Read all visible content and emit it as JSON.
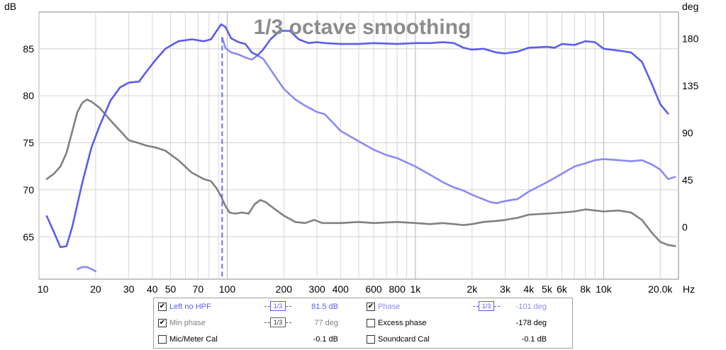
{
  "chart_data": {
    "type": "line",
    "title": "1/3 octave smoothing",
    "y_left_unit": "dB",
    "y_right_unit": "deg",
    "x_unit": "Hz",
    "x_scale": "log",
    "xlim": [
      10,
      25000
    ],
    "ylim_left": [
      60.5,
      88.9
    ],
    "ylim_right": [
      -49.6,
      205.5
    ],
    "x_tick_labels": [
      "10",
      "20",
      "30",
      "40",
      "50",
      "70",
      "100",
      "200",
      "300",
      "400",
      "600",
      "800",
      "1k",
      "2k",
      "3k",
      "4k",
      "5k",
      "6k",
      "8k",
      "10k",
      "20.0k"
    ],
    "x_tick_values": [
      10.5,
      20,
      30,
      40,
      50,
      70,
      100,
      200,
      300,
      400,
      600,
      800,
      1000,
      2000,
      3000,
      4000,
      5000,
      6000,
      8000,
      10000,
      20000
    ],
    "y_left_ticks": [
      65,
      70,
      75,
      80,
      85
    ],
    "y_right_ticks": [
      0,
      45,
      90,
      135,
      180
    ],
    "grid": true,
    "marker_frequency": 94,
    "series": [
      {
        "name": "Left no HPF",
        "axis": "left",
        "color": "#5b5bf0",
        "points": [
          [
            11,
            67.2
          ],
          [
            12,
            65.5
          ],
          [
            13,
            63.9
          ],
          [
            14,
            64.0
          ],
          [
            15,
            66.0
          ],
          [
            17,
            70.8
          ],
          [
            19,
            74.5
          ],
          [
            21,
            76.8
          ],
          [
            24,
            79.5
          ],
          [
            27,
            80.9
          ],
          [
            30,
            81.4
          ],
          [
            34,
            81.5
          ],
          [
            37,
            82.5
          ],
          [
            42,
            83.9
          ],
          [
            47,
            85.0
          ],
          [
            55,
            85.8
          ],
          [
            65,
            86.0
          ],
          [
            75,
            85.8
          ],
          [
            82,
            86.0
          ],
          [
            88,
            86.9
          ],
          [
            93,
            87.6
          ],
          [
            98,
            87.3
          ],
          [
            105,
            86.1
          ],
          [
            115,
            85.7
          ],
          [
            125,
            85.5
          ],
          [
            135,
            84.6
          ],
          [
            145,
            84.3
          ],
          [
            155,
            84.9
          ],
          [
            170,
            86.0
          ],
          [
            190,
            86.9
          ],
          [
            215,
            86.9
          ],
          [
            240,
            86.0
          ],
          [
            270,
            85.6
          ],
          [
            300,
            85.7
          ],
          [
            330,
            85.6
          ],
          [
            400,
            85.5
          ],
          [
            500,
            85.5
          ],
          [
            600,
            85.6
          ],
          [
            800,
            85.5
          ],
          [
            1000,
            85.6
          ],
          [
            1200,
            85.6
          ],
          [
            1400,
            85.7
          ],
          [
            1600,
            85.6
          ],
          [
            1800,
            85.1
          ],
          [
            2000,
            84.9
          ],
          [
            2300,
            85.0
          ],
          [
            2700,
            84.6
          ],
          [
            3000,
            84.5
          ],
          [
            3500,
            84.7
          ],
          [
            4000,
            85.1
          ],
          [
            5000,
            85.2
          ],
          [
            5500,
            85.1
          ],
          [
            6000,
            85.5
          ],
          [
            7000,
            85.4
          ],
          [
            8000,
            85.8
          ],
          [
            9000,
            85.7
          ],
          [
            10000,
            85.0
          ],
          [
            12000,
            84.8
          ],
          [
            14000,
            84.6
          ],
          [
            16000,
            83.6
          ],
          [
            18000,
            81.3
          ],
          [
            20000,
            79.1
          ],
          [
            22000,
            78.1
          ]
        ]
      },
      {
        "name": "Phase",
        "axis": "right",
        "color": "#8a8af5",
        "points": [
          [
            16,
            -40
          ],
          [
            17,
            -38
          ],
          [
            18,
            -38
          ],
          [
            19,
            -40
          ],
          [
            20,
            -42
          ]
        ]
      },
      {
        "name": "Phase",
        "axis": "right",
        "color": "#8a8af5",
        "points": [
          [
            94,
            181
          ],
          [
            98,
            171
          ],
          [
            105,
            167
          ],
          [
            115,
            165
          ],
          [
            125,
            162
          ],
          [
            135,
            160
          ],
          [
            145,
            164
          ],
          [
            155,
            161
          ],
          [
            165,
            154
          ],
          [
            180,
            144
          ],
          [
            200,
            132
          ],
          [
            230,
            122
          ],
          [
            260,
            116
          ],
          [
            300,
            110
          ],
          [
            330,
            108
          ],
          [
            400,
            92
          ],
          [
            500,
            82
          ],
          [
            600,
            74
          ],
          [
            700,
            69
          ],
          [
            800,
            66
          ],
          [
            1000,
            58
          ],
          [
            1200,
            50
          ],
          [
            1400,
            43
          ],
          [
            1600,
            38
          ],
          [
            1800,
            35
          ],
          [
            2000,
            31
          ],
          [
            2200,
            28
          ],
          [
            2500,
            24
          ],
          [
            2700,
            23
          ],
          [
            3000,
            25
          ],
          [
            3500,
            27
          ],
          [
            4000,
            34
          ],
          [
            5000,
            43
          ],
          [
            6000,
            51
          ],
          [
            7000,
            58
          ],
          [
            8000,
            61
          ],
          [
            9000,
            64
          ],
          [
            10000,
            65
          ],
          [
            12000,
            64
          ],
          [
            14000,
            63
          ],
          [
            16000,
            64
          ],
          [
            18000,
            60
          ],
          [
            20000,
            55
          ],
          [
            22000,
            46
          ],
          [
            24000,
            48
          ]
        ]
      },
      {
        "name": "Min phase",
        "axis": "right",
        "color": "#808080",
        "points": [
          [
            11,
            46
          ],
          [
            12,
            51
          ],
          [
            13,
            58
          ],
          [
            14,
            71
          ],
          [
            15,
            91
          ],
          [
            16,
            110
          ],
          [
            17,
            119
          ],
          [
            18,
            122
          ],
          [
            19,
            120
          ],
          [
            21,
            114
          ],
          [
            24,
            102
          ],
          [
            27,
            92
          ],
          [
            30,
            83
          ],
          [
            33,
            81
          ],
          [
            37,
            78
          ],
          [
            42,
            76
          ],
          [
            47,
            73
          ],
          [
            55,
            64
          ],
          [
            65,
            52
          ],
          [
            75,
            46
          ],
          [
            82,
            44
          ],
          [
            88,
            37
          ],
          [
            93,
            29
          ],
          [
            98,
            20
          ],
          [
            103,
            14
          ],
          [
            110,
            13
          ],
          [
            120,
            14
          ],
          [
            130,
            13
          ],
          [
            140,
            22
          ],
          [
            150,
            26
          ],
          [
            160,
            24
          ],
          [
            180,
            17
          ],
          [
            200,
            11
          ],
          [
            230,
            5
          ],
          [
            260,
            4
          ],
          [
            290,
            7
          ],
          [
            320,
            4
          ],
          [
            400,
            4
          ],
          [
            500,
            5
          ],
          [
            600,
            4
          ],
          [
            800,
            5
          ],
          [
            1000,
            4
          ],
          [
            1200,
            3
          ],
          [
            1400,
            4
          ],
          [
            1600,
            3
          ],
          [
            1800,
            2
          ],
          [
            2000,
            3
          ],
          [
            2300,
            5
          ],
          [
            2700,
            6
          ],
          [
            3000,
            7
          ],
          [
            3500,
            9
          ],
          [
            4000,
            12
          ],
          [
            5000,
            13
          ],
          [
            6000,
            14
          ],
          [
            7000,
            15
          ],
          [
            8000,
            17
          ],
          [
            9000,
            16
          ],
          [
            10000,
            15
          ],
          [
            12000,
            16
          ],
          [
            14000,
            14
          ],
          [
            16000,
            7
          ],
          [
            18000,
            -5
          ],
          [
            20000,
            -14
          ],
          [
            22000,
            -17
          ],
          [
            24000,
            -18
          ]
        ]
      }
    ]
  },
  "legend": {
    "row1": {
      "check1": "✔",
      "label1": "Left no HPF",
      "smooth1": "1/3",
      "value1": "81.5 dB",
      "check2": "✔",
      "label2": "Phase",
      "smooth2": "1/3",
      "value2": "-101 deg"
    },
    "row2": {
      "check1": "✔",
      "label1": "Min phase",
      "smooth1": "1/3",
      "value1": "77 deg",
      "check2": "",
      "label2": "Excess phase",
      "value2": "-178 deg"
    },
    "row3": {
      "check1": "",
      "label1": "Mic/Meter Cal",
      "value1": "-0.1 dB",
      "check2": "",
      "label2": "Soundcard Cal",
      "value2": "-0.1 dB"
    },
    "colors": {
      "left_no_hpf": "#5b5bf0",
      "phase": "#8a8af5",
      "min_phase": "#808080",
      "cal": "#000000"
    }
  }
}
